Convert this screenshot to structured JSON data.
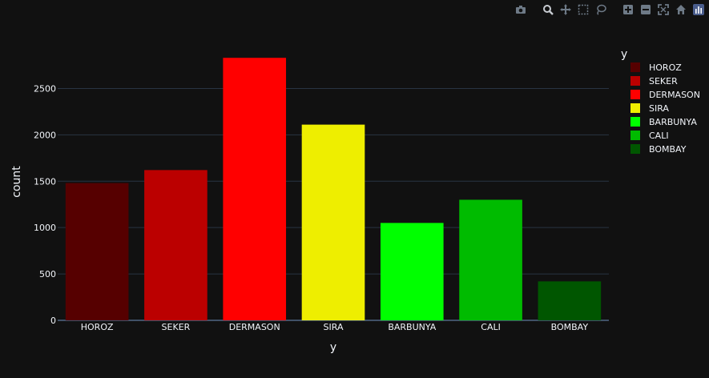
{
  "chart_data": {
    "type": "bar",
    "categories": [
      "HOROZ",
      "SEKER",
      "DERMASON",
      "SIRA",
      "BARBUNYA",
      "CALI",
      "BOMBAY"
    ],
    "values": [
      1480,
      1620,
      2830,
      2110,
      1050,
      1300,
      420
    ],
    "colors": [
      "#560000",
      "#bb0000",
      "#ff0000",
      "#eeee00",
      "#00ff00",
      "#00bb00",
      "#005600"
    ],
    "xlabel": "y",
    "ylabel": "count",
    "ylim": [
      0,
      2970
    ],
    "yticks": [
      0,
      500,
      1000,
      1500,
      2000,
      2500
    ],
    "grid": true,
    "legend_title": "y",
    "legend_position": "right",
    "theme": {
      "background": "#111111",
      "grid": "#283442",
      "text": "#f2f5fa"
    }
  },
  "modebar": {
    "icons": [
      "camera-icon",
      "zoom-icon",
      "pan-icon",
      "box-select-icon",
      "lasso-icon",
      "zoom-in-icon",
      "zoom-out-icon",
      "autoscale-icon",
      "home-icon",
      "plotly-logo-icon"
    ]
  }
}
